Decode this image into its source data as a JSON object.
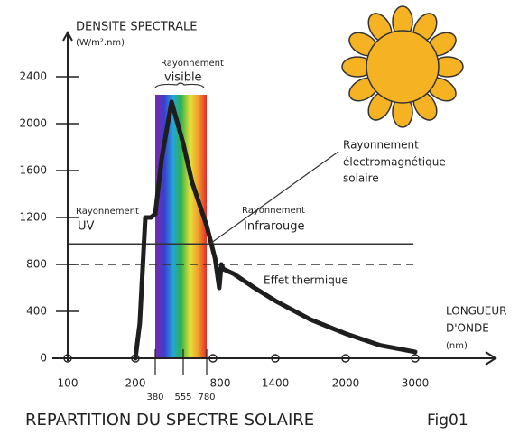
{
  "chart_data": {
    "type": "line",
    "title": "REPARTITION DU SPECTRE SOLAIRE",
    "figure_label": "Fig01",
    "y_label": [
      "DENSITE SPECTRALE",
      "(W/m².nm)"
    ],
    "x_label": [
      "LONGUEUR",
      "D'ONDE",
      "(nm)"
    ],
    "x": [
      200,
      240,
      290,
      340,
      380,
      420,
      482,
      555,
      640,
      780,
      820,
      860,
      880,
      900,
      1000,
      1200,
      1400,
      1700,
      2000,
      2500,
      3000
    ],
    "series": [
      {
        "color": "#1e1e1e",
        "values": [
          0,
          300,
          1200,
          1200,
          1230,
          1700,
          2185,
          1830,
          1500,
          1130,
          850,
          600,
          800,
          760,
          720,
          600,
          490,
          330,
          210,
          110,
          55
        ]
      }
    ],
    "xticks": [
      100,
      200,
      380,
      555,
      780,
      800,
      1400,
      2000,
      3000
    ],
    "ylim": [
      0,
      2700
    ],
    "yticks": [
      0,
      400,
      800,
      1200,
      1600,
      2000,
      2400
    ],
    "visible_band": [
      380,
      780
    ],
    "hlines": [
      {
        "value": 975,
        "style": "solid"
      },
      {
        "value": 800,
        "style": "dashed"
      }
    ],
    "annotations": [
      {
        "lines": [
          "Rayonnement",
          "visible"
        ]
      },
      {
        "lines": [
          "Rayonnement",
          "électromagnétique",
          "solaire"
        ]
      },
      {
        "lines": [
          "Rayonnement",
          "UV"
        ]
      },
      {
        "lines": [
          "Rayonnement",
          "Infrarouge"
        ]
      },
      {
        "lines": [
          "Effet thermique"
        ]
      }
    ]
  }
}
